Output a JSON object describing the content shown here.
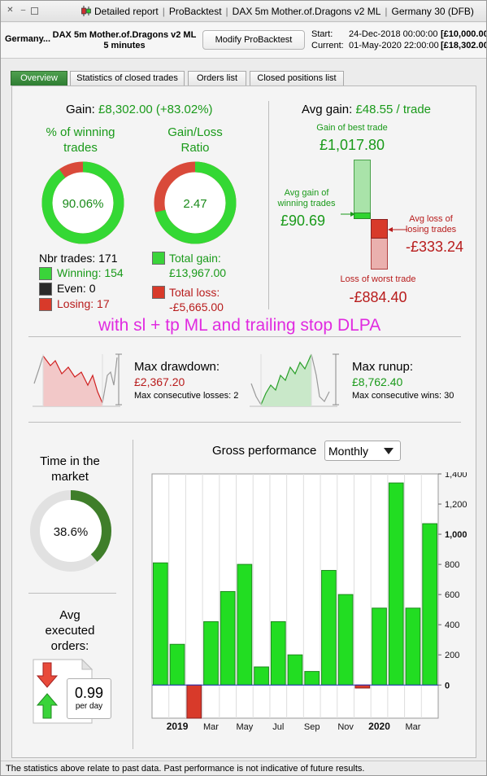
{
  "window": {
    "title_parts": [
      "Detailed report",
      "ProBacktest",
      "DAX 5m Mother.of.Dragons v2 ML",
      "Germany 30 (DFB)"
    ]
  },
  "header": {
    "instrument": "Germany...",
    "strategy_line1": "DAX 5m Mother.of.Dragons v2 ML",
    "strategy_line2": "5 minutes",
    "modify_button": "Modify ProBacktest",
    "start_label": "Start:",
    "start_date": "24-Dec-2018 00:00:00",
    "start_capital": "[£10,000.00",
    "current_label": "Current:",
    "current_date": "01-May-2020 22:00:00",
    "current_capital": "[£18,302.00"
  },
  "tabs": [
    {
      "label": "Overview",
      "active": true
    },
    {
      "label": "Statistics of closed trades",
      "active": false
    },
    {
      "label": "Orders list",
      "active": false
    },
    {
      "label": "Closed positions list",
      "active": false
    }
  ],
  "gain": {
    "label": "Gain:",
    "value": "£8,302.00 (+83.02%)"
  },
  "winning_pct": {
    "title_line1": "% of winning",
    "title_line2": "trades",
    "value": "90.06%",
    "fraction": 0.9006
  },
  "gain_loss_ratio": {
    "title_line1": "Gain/Loss",
    "title_line2": "Ratio",
    "value": "2.47",
    "gain_fraction": 0.7114
  },
  "trades": {
    "nbr_label": "Nbr trades:",
    "nbr": "171",
    "winning_label": "Winning:",
    "winning": "154",
    "even_label": "Even:",
    "even": "0",
    "losing_label": "Losing:",
    "losing": "17"
  },
  "totals": {
    "total_gain_label": "Total gain:",
    "total_gain": "£13,967.00",
    "total_loss_label": "Total loss:",
    "total_loss": "-£5,665.00"
  },
  "avg_gain": {
    "label": "Avg gain:",
    "value": "£48.55 / trade",
    "best_label": "Gain of best trade",
    "best_value": "£1,017.80",
    "avg_win_label_line1": "Avg gain of",
    "avg_win_label_line2": "winning trades",
    "avg_win_value": "£90.69",
    "avg_loss_label_line1": "Avg loss of",
    "avg_loss_label_line2": "losing trades",
    "avg_loss_value": "-£333.24",
    "worst_label": "Loss of worst trade",
    "worst_value": "-£884.40"
  },
  "annotation": "with sl + tp ML and trailing stop DLPA",
  "drawdown": {
    "label": "Max drawdown:",
    "value": "£2,367.20",
    "sub": "Max consecutive losses: 2"
  },
  "runup": {
    "label": "Max runup:",
    "value": "£8,762.40",
    "sub": "Max consecutive wins: 30"
  },
  "time_in_market": {
    "title_line1": "Time in the",
    "title_line2": "market",
    "value": "38.6%",
    "fraction": 0.386
  },
  "avg_orders": {
    "title_line1": "Avg",
    "title_line2": "executed",
    "title_line3": "orders:",
    "value": "0.99",
    "unit": "per day"
  },
  "performance": {
    "label": "Gross performance",
    "period": "Monthly"
  },
  "chart_data": {
    "type": "bar",
    "categories": [
      "Dec 2018",
      "Jan 2019",
      "Feb 2019",
      "Mar 2019",
      "Apr 2019",
      "May 2019",
      "Jun 2019",
      "Jul 2019",
      "Aug 2019",
      "Sep 2019",
      "Oct 2019",
      "Nov 2019",
      "Dec 2019",
      "Jan 2020",
      "Feb 2020",
      "Mar 2020",
      "Apr 2020"
    ],
    "values": [
      810,
      270,
      -220,
      420,
      620,
      800,
      120,
      420,
      200,
      90,
      760,
      600,
      -20,
      510,
      1340,
      510,
      1070
    ],
    "x_tick_labels": [
      "2019",
      "Mar",
      "May",
      "Jul",
      "Sep",
      "Nov",
      "2020",
      "Mar"
    ],
    "x_tick_bold": [
      true,
      false,
      false,
      false,
      false,
      false,
      true,
      false
    ],
    "x_tick_index": [
      1,
      3,
      5,
      7,
      9,
      11,
      13,
      15
    ],
    "y_ticks": [
      0,
      200,
      400,
      600,
      800,
      1000,
      1200,
      1400
    ],
    "y_tick_labels": [
      "0",
      "200",
      "400",
      "600",
      "800",
      "1,000",
      "1,200",
      "1,400"
    ],
    "ylim": [
      -220,
      1400
    ],
    "grid": true,
    "colors": {
      "positive": "#22dd22",
      "negative": "#d83a2a"
    }
  },
  "footer": {
    "disclaimer": "The statistics above relate to past data. Past performance is not indicative of future results."
  },
  "colors": {
    "green": "#1a9a1a",
    "red": "#b81c1c",
    "tab_active": "#2e7d32",
    "annotation": "#e02be0"
  }
}
